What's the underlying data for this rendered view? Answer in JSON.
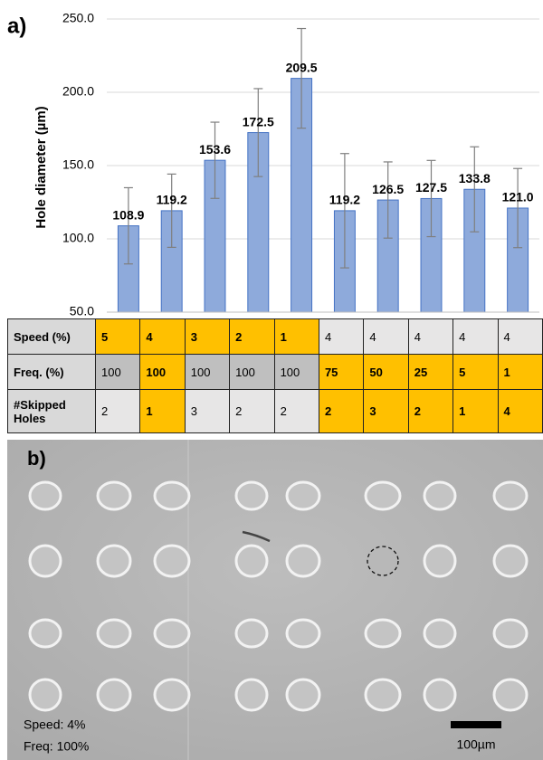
{
  "chart_data": {
    "type": "bar",
    "panel_label": "a)",
    "y_label": "Hole diameter (µm)",
    "categories": [
      null,
      null,
      null,
      null,
      null,
      null,
      null,
      null,
      null,
      null
    ],
    "values": [
      108.9,
      119.2,
      153.6,
      172.5,
      209.5,
      119.2,
      126.5,
      127.5,
      133.8,
      121.0
    ],
    "value_labels": [
      "108.9",
      "119.2",
      "153.6",
      "172.5",
      "209.5",
      "119.2",
      "126.5",
      "127.5",
      "133.8",
      "121.0"
    ],
    "errors": [
      26,
      25,
      26,
      30,
      34,
      39,
      26,
      26,
      29,
      27
    ],
    "color": "#8eaadb",
    "edge_color": "#4472c4",
    "error_color": "#7f7f7f",
    "ylim": [
      50,
      250
    ],
    "yticks": [
      {
        "value": 50,
        "label": "50.0"
      },
      {
        "value": 100,
        "label": "100.0"
      },
      {
        "value": 150,
        "label": "150.0"
      },
      {
        "value": 200,
        "label": "200.0"
      },
      {
        "value": 250,
        "label": "250.0"
      }
    ],
    "grid": true
  },
  "table": {
    "highlight_color": "#ffc000",
    "rows": [
      {
        "header": "Speed (%)",
        "background": "#e7e6e6",
        "cells": [
          "5",
          "4",
          "3",
          "2",
          "1",
          "4",
          "4",
          "4",
          "4",
          "4"
        ],
        "highlight": [
          true,
          true,
          true,
          true,
          true,
          false,
          false,
          false,
          false,
          false
        ]
      },
      {
        "header": "Freq. (%)",
        "background": "#bfbfbf",
        "cells": [
          "100",
          "100",
          "100",
          "100",
          "100",
          "75",
          "50",
          "25",
          "5",
          "1"
        ],
        "highlight": [
          false,
          true,
          false,
          false,
          false,
          true,
          true,
          true,
          true,
          true
        ]
      },
      {
        "header": "#Skipped Holes",
        "background": "#e7e6e6",
        "cells": [
          "2",
          "1",
          "3",
          "2",
          "2",
          "2",
          "3",
          "2",
          "1",
          "4"
        ],
        "highlight": [
          false,
          true,
          false,
          false,
          false,
          true,
          true,
          true,
          true,
          true
        ]
      }
    ]
  },
  "image": {
    "panel_label": "b)",
    "speed_text": "Speed: 4%",
    "freq_text": "Freq: 100%",
    "scale_text": "100µm"
  }
}
